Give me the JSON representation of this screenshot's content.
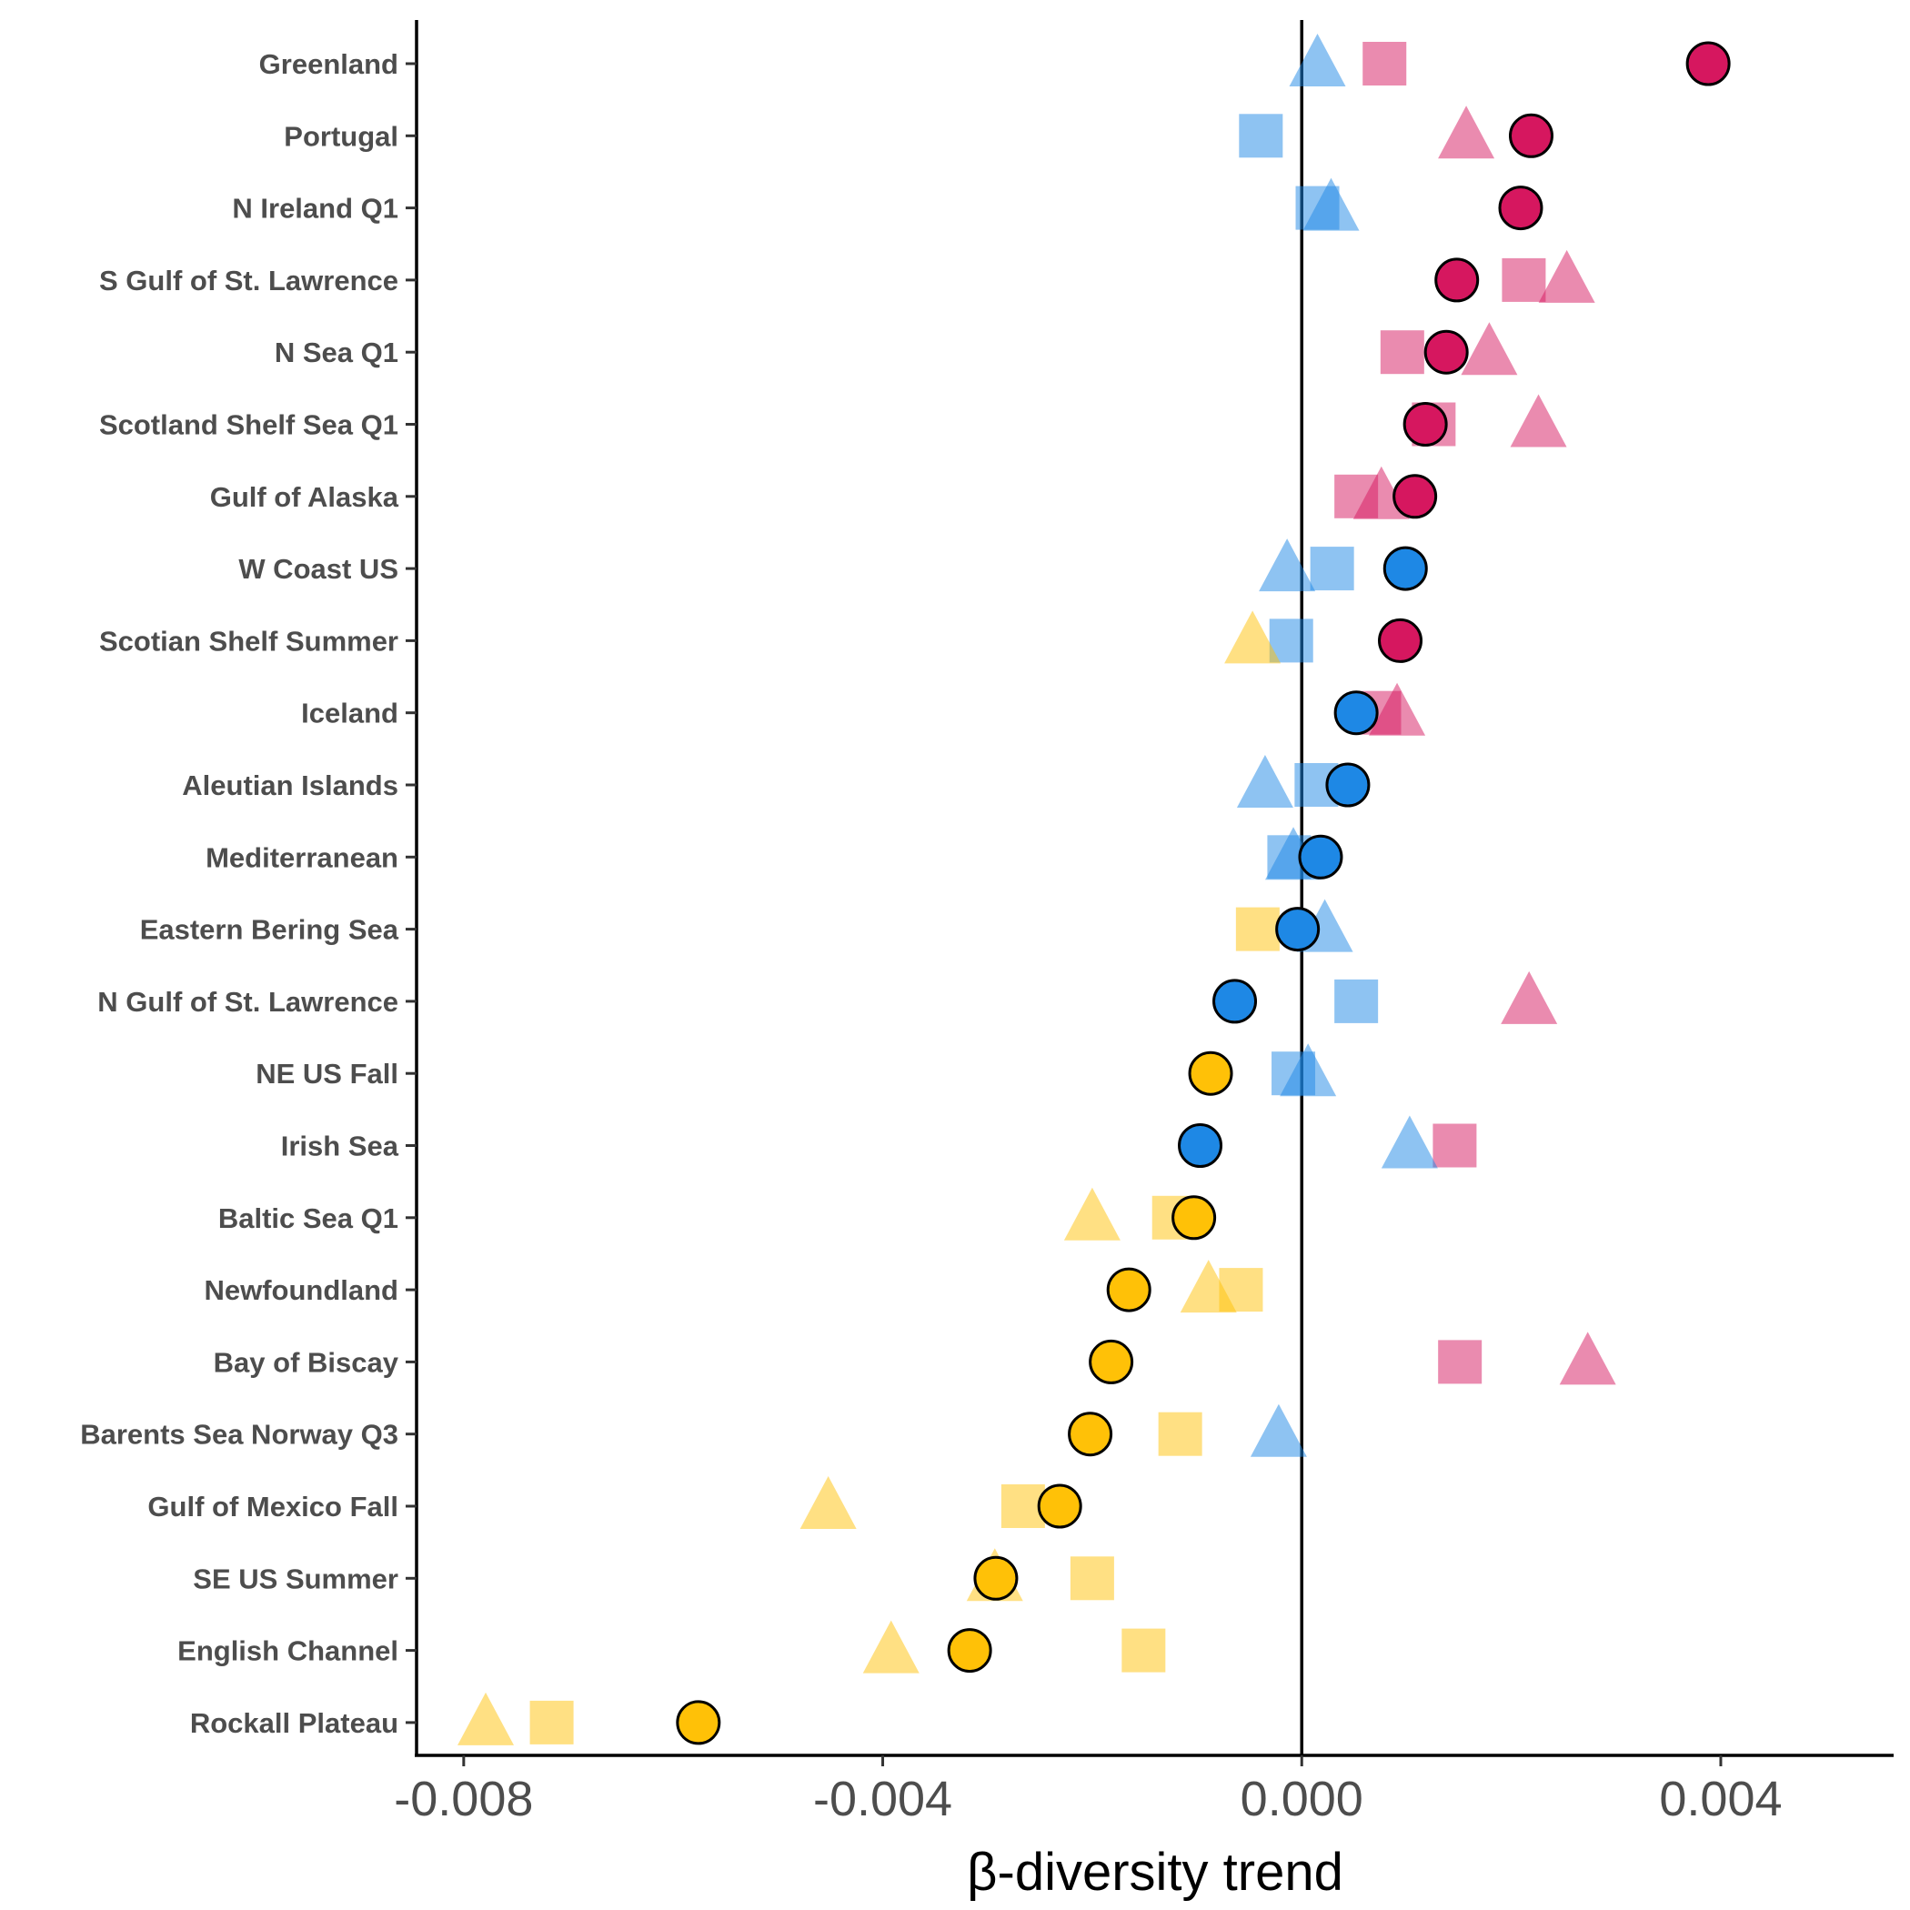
{
  "chart_data": {
    "type": "scatter",
    "xlabel": "β-diversity trend",
    "ylabel": "",
    "title": "",
    "xlim": [
      -0.00845,
      0.00565
    ],
    "x_ticks": [
      -0.008,
      -0.004,
      0.0,
      0.004
    ],
    "x_tick_labels": [
      "-0.008",
      "-0.004",
      "0.000",
      "0.004"
    ],
    "zero_line": 0.0,
    "grid": false,
    "legend": "none",
    "colors": {
      "positive": "#d6175f",
      "neutral": "#1e88e5",
      "negative": "#ffc107"
    },
    "categories": [
      "Greenland",
      "Portugal",
      "N Ireland Q1",
      "S Gulf of St. Lawrence",
      "N Sea Q1",
      "Scotland Shelf Sea Q1",
      "Gulf of Alaska",
      "W Coast US",
      "Scotian Shelf Summer",
      "Iceland",
      "Aleutian Islands",
      "Mediterranean",
      "Eastern Bering Sea",
      "N Gulf of St. Lawrence",
      "NE US Fall",
      "Irish Sea",
      "Baltic Sea Q1",
      "Newfoundland",
      "Bay of Biscay",
      "Barents Sea Norway Q3",
      "Gulf of Mexico Fall",
      "SE US Summer",
      "English Channel",
      "Rockall Plateau"
    ],
    "series": [
      {
        "marker": "circle",
        "points": [
          {
            "category": "Greenland",
            "x": 0.00388,
            "group": "positive"
          },
          {
            "category": "Portugal",
            "x": 0.00219,
            "group": "positive"
          },
          {
            "category": "N Ireland Q1",
            "x": 0.00209,
            "group": "positive"
          },
          {
            "category": "S Gulf of St. Lawrence",
            "x": 0.00148,
            "group": "positive"
          },
          {
            "category": "N Sea Q1",
            "x": 0.00138,
            "group": "positive"
          },
          {
            "category": "Scotland Shelf Sea Q1",
            "x": 0.00118,
            "group": "positive"
          },
          {
            "category": "Gulf of Alaska",
            "x": 0.00108,
            "group": "positive"
          },
          {
            "category": "W Coast US",
            "x": 0.00099,
            "group": "neutral"
          },
          {
            "category": "Scotian Shelf Summer",
            "x": 0.00094,
            "group": "positive"
          },
          {
            "category": "Iceland",
            "x": 0.00052,
            "group": "neutral"
          },
          {
            "category": "Aleutian Islands",
            "x": 0.00044,
            "group": "neutral"
          },
          {
            "category": "Mediterranean",
            "x": 0.00018,
            "group": "neutral"
          },
          {
            "category": "Eastern Bering Sea",
            "x": -4e-05,
            "group": "neutral"
          },
          {
            "category": "N Gulf of St. Lawrence",
            "x": -0.00064,
            "group": "neutral"
          },
          {
            "category": "NE US Fall",
            "x": -0.00087,
            "group": "negative"
          },
          {
            "category": "Irish Sea",
            "x": -0.00097,
            "group": "neutral"
          },
          {
            "category": "Baltic Sea Q1",
            "x": -0.00103,
            "group": "negative"
          },
          {
            "category": "Newfoundland",
            "x": -0.00165,
            "group": "negative"
          },
          {
            "category": "Bay of Biscay",
            "x": -0.00182,
            "group": "negative"
          },
          {
            "category": "Barents Sea Norway Q3",
            "x": -0.00202,
            "group": "negative"
          },
          {
            "category": "Gulf of Mexico Fall",
            "x": -0.00231,
            "group": "negative"
          },
          {
            "category": "SE US Summer",
            "x": -0.00292,
            "group": "negative"
          },
          {
            "category": "English Channel",
            "x": -0.00317,
            "group": "negative"
          },
          {
            "category": "Rockall Plateau",
            "x": -0.00576,
            "group": "negative"
          }
        ]
      },
      {
        "marker": "square",
        "points": [
          {
            "category": "Greenland",
            "x": 0.00079,
            "group": "positive"
          },
          {
            "category": "Portugal",
            "x": -0.00039,
            "group": "neutral"
          },
          {
            "category": "N Ireland Q1",
            "x": 0.00015,
            "group": "neutral"
          },
          {
            "category": "S Gulf of St. Lawrence",
            "x": 0.00212,
            "group": "positive"
          },
          {
            "category": "N Sea Q1",
            "x": 0.00096,
            "group": "positive"
          },
          {
            "category": "Scotland Shelf Sea Q1",
            "x": 0.00126,
            "group": "positive"
          },
          {
            "category": "Gulf of Alaska",
            "x": 0.00052,
            "group": "positive"
          },
          {
            "category": "W Coast US",
            "x": 0.00029,
            "group": "neutral"
          },
          {
            "category": "Scotian Shelf Summer",
            "x": -0.0001,
            "group": "neutral"
          },
          {
            "category": "Iceland",
            "x": 0.00074,
            "group": "positive"
          },
          {
            "category": "Aleutian Islands",
            "x": 0.00014,
            "group": "neutral"
          },
          {
            "category": "Mediterranean",
            "x": -0.00012,
            "group": "neutral"
          },
          {
            "category": "Eastern Bering Sea",
            "x": -0.00042,
            "group": "negative"
          },
          {
            "category": "N Gulf of St. Lawrence",
            "x": 0.00052,
            "group": "neutral"
          },
          {
            "category": "NE US Fall",
            "x": -8e-05,
            "group": "neutral"
          },
          {
            "category": "Irish Sea",
            "x": 0.00146,
            "group": "positive"
          },
          {
            "category": "Baltic Sea Q1",
            "x": -0.00122,
            "group": "negative"
          },
          {
            "category": "Newfoundland",
            "x": -0.00058,
            "group": "negative"
          },
          {
            "category": "Bay of Biscay",
            "x": 0.00151,
            "group": "positive"
          },
          {
            "category": "Barents Sea Norway Q3",
            "x": -0.00116,
            "group": "negative"
          },
          {
            "category": "Gulf of Mexico Fall",
            "x": -0.00266,
            "group": "negative"
          },
          {
            "category": "SE US Summer",
            "x": -0.002,
            "group": "negative"
          },
          {
            "category": "English Channel",
            "x": -0.00151,
            "group": "negative"
          },
          {
            "category": "Rockall Plateau",
            "x": -0.00716,
            "group": "negative"
          }
        ]
      },
      {
        "marker": "triangle",
        "points": [
          {
            "category": "Greenland",
            "x": 0.00015,
            "group": "neutral"
          },
          {
            "category": "Portugal",
            "x": 0.00157,
            "group": "positive"
          },
          {
            "category": "N Ireland Q1",
            "x": 0.00028,
            "group": "neutral"
          },
          {
            "category": "S Gulf of St. Lawrence",
            "x": 0.00253,
            "group": "positive"
          },
          {
            "category": "N Sea Q1",
            "x": 0.00179,
            "group": "positive"
          },
          {
            "category": "Scotland Shelf Sea Q1",
            "x": 0.00226,
            "group": "positive"
          },
          {
            "category": "Gulf of Alaska",
            "x": 0.00076,
            "group": "positive"
          },
          {
            "category": "W Coast US",
            "x": -0.00014,
            "group": "neutral"
          },
          {
            "category": "Scotian Shelf Summer",
            "x": -0.00047,
            "group": "negative"
          },
          {
            "category": "Iceland",
            "x": 0.00091,
            "group": "positive"
          },
          {
            "category": "Aleutian Islands",
            "x": -0.00035,
            "group": "neutral"
          },
          {
            "category": "Mediterranean",
            "x": -8e-05,
            "group": "neutral"
          },
          {
            "category": "Eastern Bering Sea",
            "x": 0.00022,
            "group": "neutral"
          },
          {
            "category": "N Gulf of St. Lawrence",
            "x": 0.00217,
            "group": "positive"
          },
          {
            "category": "NE US Fall",
            "x": 6e-05,
            "group": "neutral"
          },
          {
            "category": "Irish Sea",
            "x": 0.00103,
            "group": "neutral"
          },
          {
            "category": "Baltic Sea Q1",
            "x": -0.002,
            "group": "negative"
          },
          {
            "category": "Newfoundland",
            "x": -0.00089,
            "group": "negative"
          },
          {
            "category": "Bay of Biscay",
            "x": 0.00273,
            "group": "positive"
          },
          {
            "category": "Barents Sea Norway Q3",
            "x": -0.00022,
            "group": "neutral"
          },
          {
            "category": "Gulf of Mexico Fall",
            "x": -0.00452,
            "group": "negative"
          },
          {
            "category": "SE US Summer",
            "x": -0.00293,
            "group": "negative"
          },
          {
            "category": "English Channel",
            "x": -0.00392,
            "group": "negative"
          },
          {
            "category": "Rockall Plateau",
            "x": -0.00779,
            "group": "negative"
          }
        ]
      }
    ]
  }
}
